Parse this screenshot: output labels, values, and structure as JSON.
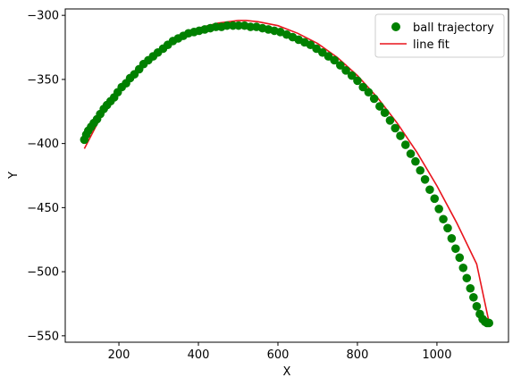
{
  "chart_data": {
    "type": "scatter",
    "xlabel": "X",
    "ylabel": "Y",
    "xlim": [
      65,
      1180
    ],
    "ylim": [
      -555,
      -295
    ],
    "xticks": [
      200,
      400,
      600,
      800,
      1000
    ],
    "yticks": [
      -550,
      -500,
      -450,
      -400,
      -350,
      -300
    ],
    "grid": false,
    "legend_position": "top-right",
    "series": [
      {
        "name": "ball trajectory",
        "kind": "points",
        "color": "#008000",
        "x": [
          113,
          118,
          123,
          130,
          137,
          145,
          153,
          162,
          170,
          179,
          188,
          197,
          207,
          218,
          228,
          239,
          251,
          262,
          274,
          286,
          298,
          311,
          323,
          336,
          349,
          362,
          375,
          389,
          402,
          416,
          430,
          444,
          458,
          472,
          487,
          501,
          516,
          531,
          546,
          561,
          576,
          591,
          606,
          622,
          637,
          652,
          667,
          682,
          697,
          712,
          727,
          742,
          757,
          771,
          786,
          800,
          814,
          828,
          842,
          856,
          869,
          882,
          895,
          908,
          921,
          934,
          946,
          958,
          970,
          982,
          994,
          1005,
          1016,
          1027,
          1037,
          1047,
          1057,
          1066,
          1075,
          1084,
          1092,
          1100,
          1108,
          1115,
          1121,
          1126,
          1131
        ],
        "y": [
          -397,
          -393,
          -390,
          -387,
          -384,
          -381,
          -377,
          -373,
          -370,
          -367,
          -364,
          -360,
          -356,
          -353,
          -349,
          -346,
          -342,
          -338,
          -335,
          -332,
          -329,
          -326,
          -323,
          -320,
          -318,
          -316,
          -314,
          -313,
          -312,
          -311,
          -310,
          -309,
          -309,
          -308,
          -308,
          -308,
          -308,
          -309,
          -309,
          -310,
          -311,
          -312,
          -313,
          -315,
          -317,
          -319,
          -321,
          -323,
          -326,
          -329,
          -332,
          -335,
          -339,
          -343,
          -347,
          -351,
          -356,
          -360,
          -365,
          -371,
          -376,
          -382,
          -388,
          -394,
          -401,
          -408,
          -414,
          -421,
          -428,
          -436,
          -443,
          -451,
          -459,
          -466,
          -474,
          -482,
          -489,
          -497,
          -505,
          -513,
          -520,
          -527,
          -533,
          -537,
          -539,
          -540,
          -540
        ]
      },
      {
        "name": "line fit",
        "kind": "line",
        "color": "#e8141c",
        "x": [
          113,
          150,
          200,
          250,
          300,
          350,
          400,
          450,
          500,
          520,
          550,
          600,
          650,
          700,
          750,
          800,
          850,
          900,
          950,
          1000,
          1050,
          1100,
          1130
        ],
        "y": [
          -404,
          -382,
          -357,
          -340,
          -327,
          -317,
          -310,
          -306,
          -304,
          -304,
          -305,
          -308,
          -314,
          -322,
          -333,
          -347,
          -364,
          -384,
          -407,
          -433,
          -462,
          -494,
          -538
        ]
      }
    ]
  }
}
